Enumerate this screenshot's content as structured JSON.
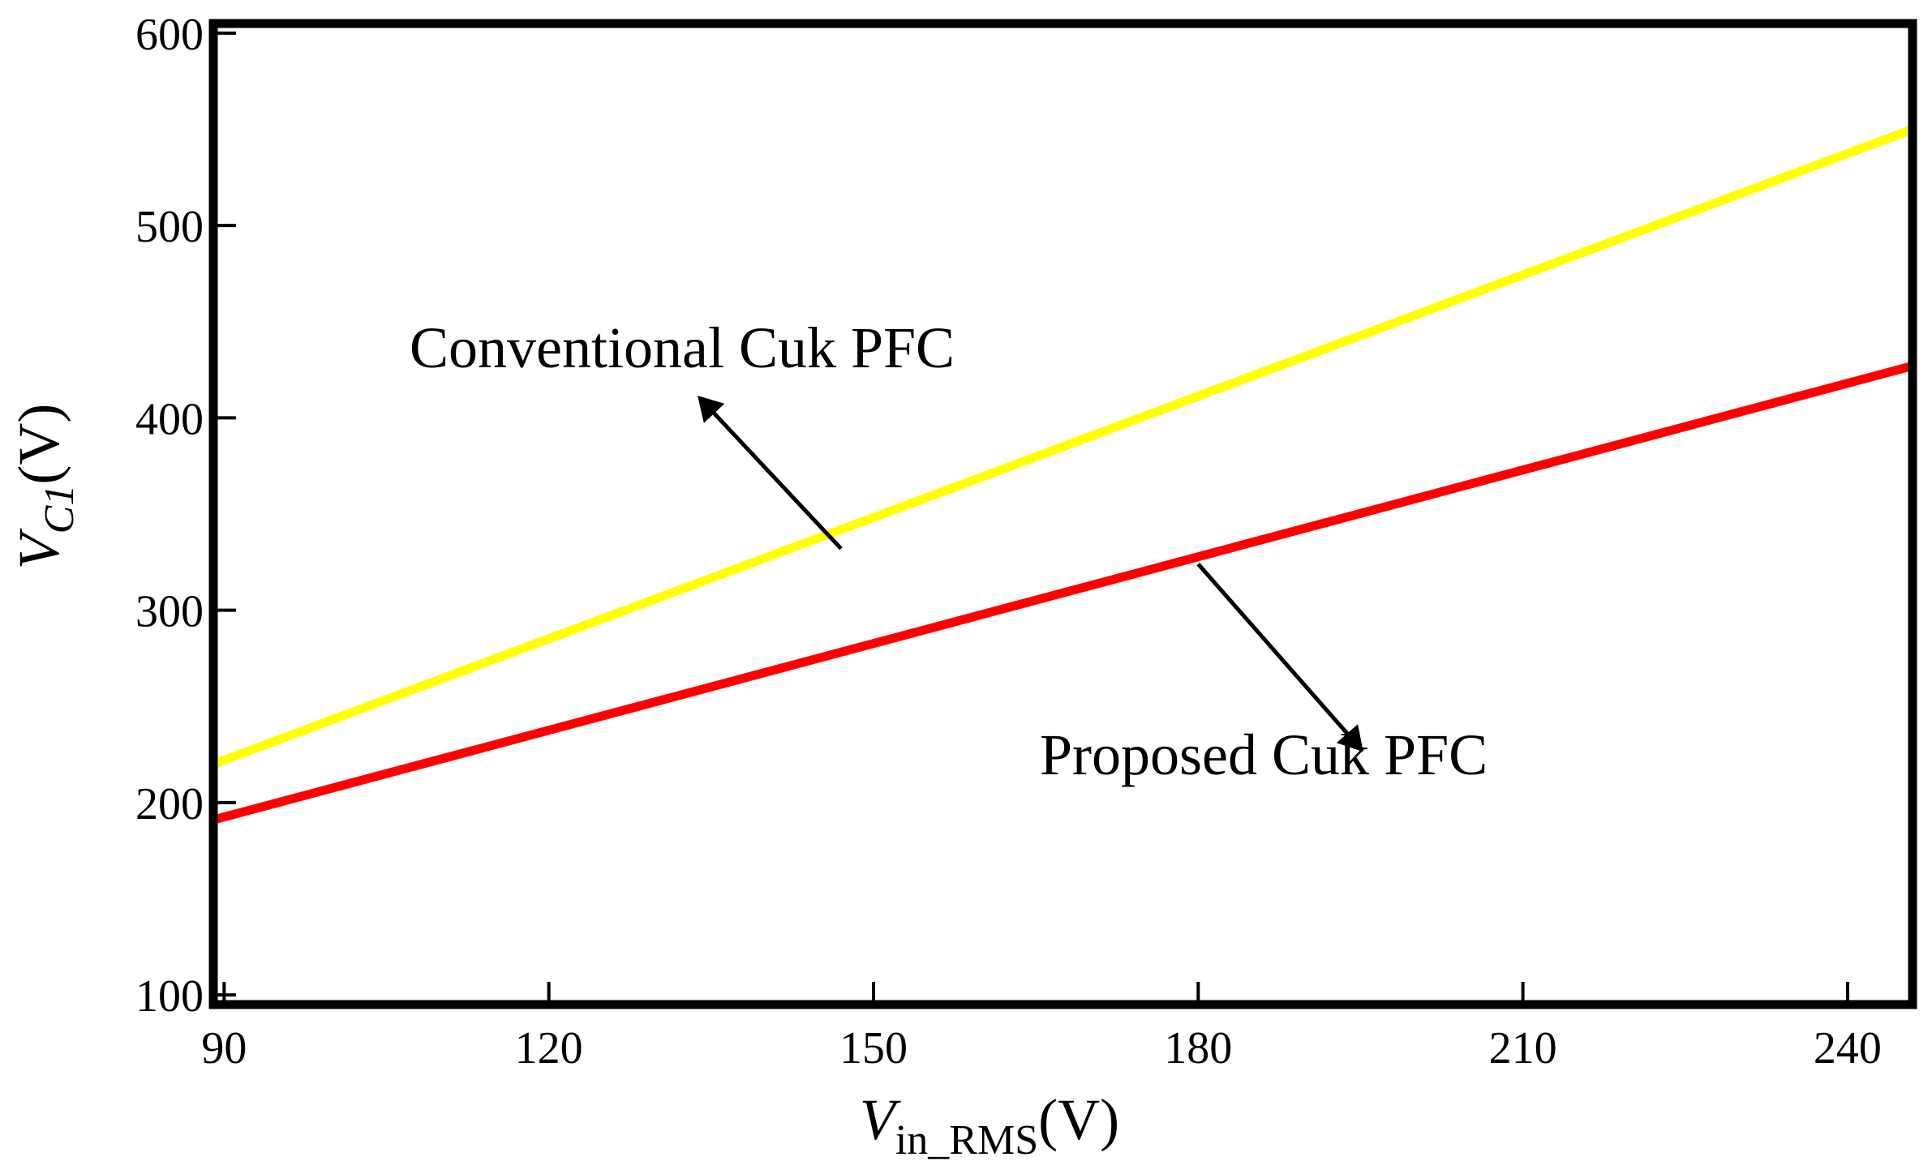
{
  "chart_data": {
    "type": "line",
    "xlabel": {
      "main": "V",
      "sub": "in_RMS",
      "unit": "(V)"
    },
    "ylabel": {
      "main": "V",
      "sub": "C1",
      "unit": "(V)"
    },
    "xlim": [
      89,
      246
    ],
    "ylim": [
      95,
      605
    ],
    "xticks": [
      90,
      120,
      150,
      180,
      210,
      240
    ],
    "yticks": [
      100,
      200,
      300,
      400,
      500,
      600
    ],
    "x": [
      89,
      246
    ],
    "series": [
      {
        "name": "Conventional Cuk PFC",
        "color": "#ffff00",
        "values": [
          220,
          550
        ]
      },
      {
        "name": "Proposed Cuk PFC",
        "color": "#ff0000",
        "values": [
          191,
          427
        ]
      }
    ],
    "annotations": [
      {
        "text": "Conventional Cuk PFC",
        "series": 0,
        "arrow_from": [
          147,
          332
        ],
        "arrow_to": [
          134,
          410
        ]
      },
      {
        "text": "Proposed Cuk PFC",
        "series": 1,
        "arrow_from": [
          180,
          324
        ],
        "arrow_to": [
          195,
          228
        ]
      }
    ]
  }
}
